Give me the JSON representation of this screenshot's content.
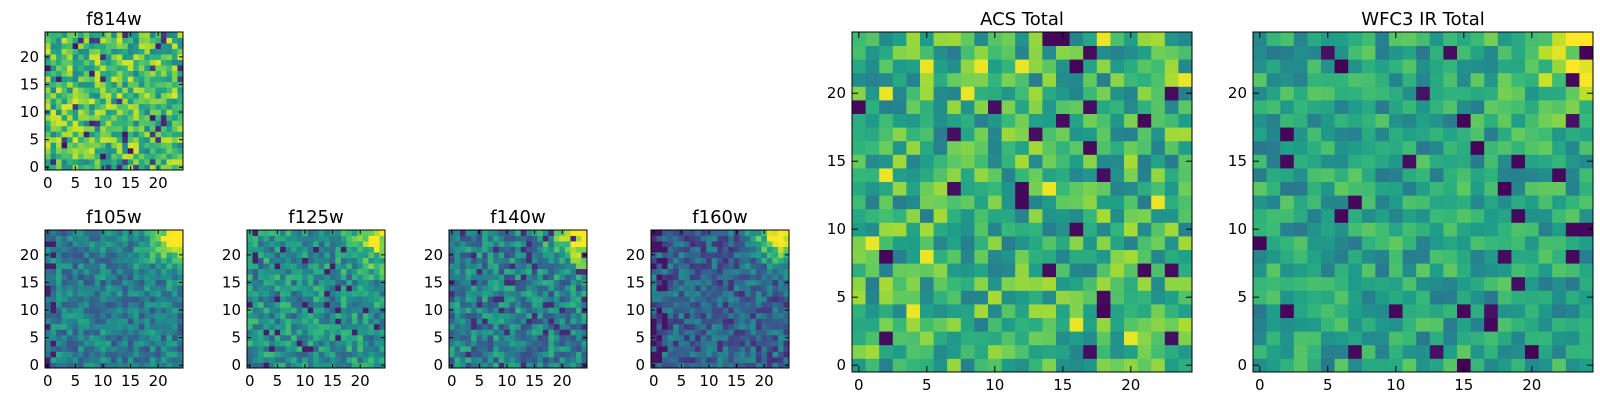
{
  "figure": {
    "description_free": true
  },
  "chart_data": [
    {
      "id": "f814w",
      "type": "heatmap",
      "title": "f814w",
      "grid": [
        25,
        25
      ],
      "seed": 11,
      "profile": "acs",
      "colormap": "viridis",
      "xlim": [
        -0.5,
        24.5
      ],
      "ylim": [
        -0.5,
        24.5
      ],
      "xticks": [
        0,
        5,
        10,
        15,
        20
      ],
      "yticks": [
        0,
        5,
        10,
        15,
        20
      ]
    },
    {
      "id": "f105w",
      "type": "heatmap",
      "title": "f105w",
      "grid": [
        25,
        25
      ],
      "seed": 21,
      "profile": "ir_105",
      "colormap": "viridis",
      "xlim": [
        -0.5,
        24.5
      ],
      "ylim": [
        -0.5,
        24.5
      ],
      "xticks": [
        0,
        5,
        10,
        15,
        20
      ],
      "yticks": [
        0,
        5,
        10,
        15,
        20
      ]
    },
    {
      "id": "f125w",
      "type": "heatmap",
      "title": "f125w",
      "grid": [
        25,
        25
      ],
      "seed": 31,
      "profile": "ir_125",
      "colormap": "viridis",
      "xlim": [
        -0.5,
        24.5
      ],
      "ylim": [
        -0.5,
        24.5
      ],
      "xticks": [
        0,
        5,
        10,
        15,
        20
      ],
      "yticks": [
        0,
        5,
        10,
        15,
        20
      ]
    },
    {
      "id": "f140w",
      "type": "heatmap",
      "title": "f140w",
      "grid": [
        25,
        25
      ],
      "seed": 41,
      "profile": "ir_140",
      "colormap": "viridis",
      "xlim": [
        -0.5,
        24.5
      ],
      "ylim": [
        -0.5,
        24.5
      ],
      "xticks": [
        0,
        5,
        10,
        15,
        20
      ],
      "yticks": [
        0,
        5,
        10,
        15,
        20
      ]
    },
    {
      "id": "f160w",
      "type": "heatmap",
      "title": "f160w",
      "grid": [
        25,
        25
      ],
      "seed": 51,
      "profile": "ir_160",
      "colormap": "viridis",
      "xlim": [
        -0.5,
        24.5
      ],
      "ylim": [
        -0.5,
        24.5
      ],
      "xticks": [
        0,
        5,
        10,
        15,
        20
      ],
      "yticks": [
        0,
        5,
        10,
        15,
        20
      ]
    },
    {
      "id": "acs-total",
      "type": "heatmap",
      "title": "ACS Total",
      "grid": [
        25,
        25
      ],
      "seed": 61,
      "profile": "acs_total",
      "colormap": "viridis",
      "xlim": [
        -0.5,
        24.5
      ],
      "ylim": [
        -0.5,
        24.5
      ],
      "xticks": [
        0,
        5,
        10,
        15,
        20
      ],
      "yticks": [
        0,
        5,
        10,
        15,
        20
      ]
    },
    {
      "id": "wfc3-ir-total",
      "type": "heatmap",
      "title": "WFC3 IR Total",
      "grid": [
        25,
        25
      ],
      "seed": 71,
      "profile": "ir_total",
      "colormap": "viridis",
      "xlim": [
        -0.5,
        24.5
      ],
      "ylim": [
        -0.5,
        24.5
      ],
      "xticks": [
        0,
        5,
        10,
        15,
        20
      ],
      "yticks": [
        0,
        5,
        10,
        15,
        20
      ]
    }
  ]
}
